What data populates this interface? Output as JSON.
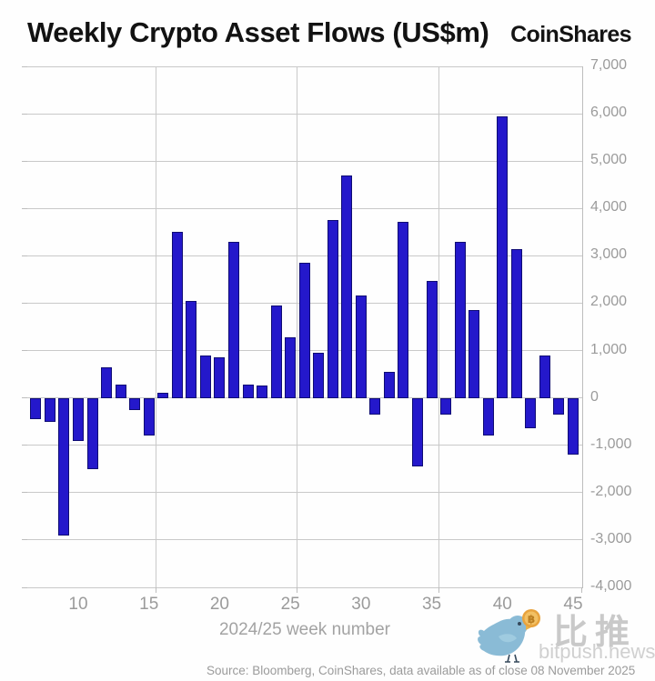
{
  "header": {
    "title": "Weekly Crypto Asset Flows (US$m)",
    "logo": "CoinShares"
  },
  "chart_data": {
    "type": "bar",
    "title": "Weekly Crypto Asset Flows (US$m)",
    "xlabel": "2024/25 week number",
    "ylabel": "",
    "x": [
      7,
      8,
      9,
      10,
      11,
      12,
      13,
      14,
      15,
      16,
      17,
      18,
      19,
      20,
      21,
      22,
      23,
      24,
      25,
      26,
      27,
      28,
      29,
      30,
      31,
      32,
      33,
      34,
      35,
      36,
      37,
      38,
      39,
      40,
      41,
      42,
      43,
      44,
      45
    ],
    "values": [
      -450,
      -500,
      -2900,
      -900,
      -1500,
      650,
      280,
      -250,
      -800,
      100,
      3500,
      2050,
      900,
      850,
      3300,
      290,
      260,
      1950,
      1270,
      2850,
      960,
      3750,
      4700,
      2170,
      -360,
      550,
      3720,
      -1440,
      2470,
      -360,
      3300,
      1860,
      -800,
      5950,
      3140,
      -650,
      900,
      -360,
      -1190
    ],
    "ylim": [
      -4000,
      7000
    ],
    "ytick_step": 1000,
    "xticks": [
      10,
      15,
      20,
      25,
      30,
      35,
      40,
      45
    ],
    "grid_vertical_weeks": [
      15.5,
      25.5,
      35.5
    ],
    "grid": "on",
    "legend": "none",
    "bar_color": "#2418cb",
    "bar_edge_color": "#0f0c74",
    "grid_color": "#c9c9c9",
    "axis_text_color": "#9b9b9b"
  },
  "footer": {
    "source": "Source: Bloomberg, CoinShares, data available as of close 08 November 2025"
  },
  "watermark": {
    "cn": "比推",
    "site": "bitpush.news",
    "coin_symbol": "฿"
  }
}
